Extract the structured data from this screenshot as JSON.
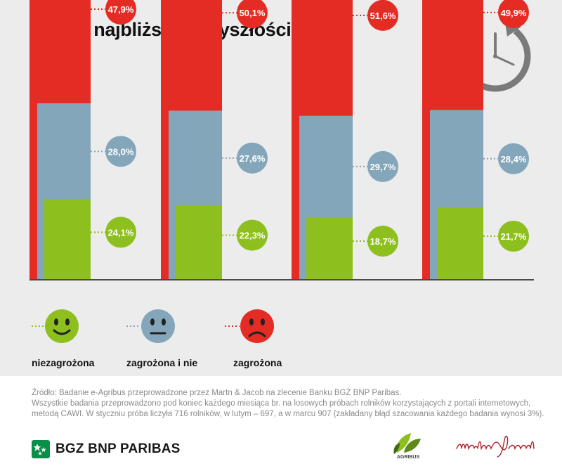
{
  "title": "Ocena najbliższej przyszłości",
  "colors": {
    "red": "#e52c24",
    "blue": "#84a6bb",
    "green": "#8dbf1e",
    "background": "#ececec",
    "clock": "#7a7a7a"
  },
  "chart_data": {
    "type": "bar",
    "categories": [
      "",
      "",
      "",
      ""
    ],
    "series": [
      {
        "name": "zagrożona",
        "values": [
          47.9,
          50.1,
          51.6,
          49.9
        ],
        "labels": [
          "47,9%",
          "50,1%",
          "51,6%",
          "49,9%"
        ]
      },
      {
        "name": "zagrożona i nie",
        "values": [
          28.0,
          27.6,
          29.7,
          28.4
        ],
        "labels": [
          "28,0%",
          "27,6%",
          "29,7%",
          "28,4%"
        ]
      },
      {
        "name": "niezagrożona",
        "values": [
          24.1,
          22.3,
          18.7,
          21.7
        ],
        "labels": [
          "24,1%",
          "22,3%",
          "18,7%",
          "21,7%"
        ]
      }
    ],
    "xlabel": "",
    "ylabel": "",
    "grid": false,
    "legend": "bottom"
  },
  "legend": [
    {
      "label": "niezagrożona",
      "icon": "smiley-happy-icon",
      "color": "#8dbf1e"
    },
    {
      "label": "zagrożona i nie",
      "icon": "smiley-neutral-icon",
      "color": "#84a6bb"
    },
    {
      "label": "zagrożona",
      "icon": "smiley-sad-icon",
      "color": "#e52c24"
    }
  ],
  "footer": {
    "line1": "Źródło: Badanie e-Agribus przeprowadzone przez Martn & Jacob na zlecenie Banku BGŻ BNP Paribas.",
    "line2": "Wszystkie badania przeprowadzono pod koniec każdego miesiąca br. na losowych próbach rolników korzystających z portali internetowych,",
    "line3": "metodą CAWI. W styczniu próba liczyła 716 rolników, w lutym – 697, a w marcu 907 (zakładany błąd szacowania każdego badania wynosi 3%)."
  },
  "brand": {
    "bank": "BGZ BNP PARIBAS",
    "agribus": "AGRIBUS",
    "icon": "bnp-stars-logo"
  },
  "clock_icon": "clock-icon"
}
